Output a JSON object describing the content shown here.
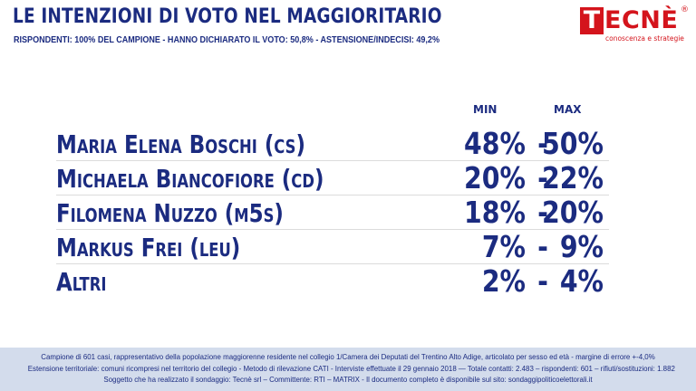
{
  "header": {
    "title": "LE INTENZIONI DI VOTO NEL MAGGIORITARIO",
    "subtitle": "RISPONDENTI: 100% DEL CAMPIONE - HANNO DICHIARATO IL VOTO: 50,8% - ASTENSIONE/INDECISI: 49,2%"
  },
  "logo": {
    "first_letter": "T",
    "rest": "ECNÈ",
    "registered": "®",
    "tagline": "conoscenza e strategie",
    "color": "#d4141c"
  },
  "chart_data": {
    "type": "table",
    "title": "LE INTENZIONI DI VOTO NEL MAGGIORITARIO",
    "columns": [
      "MIN",
      "MAX"
    ],
    "rows": [
      {
        "candidate": "Maria Elena Boschi (cs)",
        "min": "48%",
        "max": "50%"
      },
      {
        "candidate": "Michaela Biancofiore (cd)",
        "min": "20%",
        "max": "22%"
      },
      {
        "candidate": "Filomena Nuzzo (m5s)",
        "min": "18%",
        "max": "20%"
      },
      {
        "candidate": "Markus Frei (leu)",
        "min": "7%",
        "max": "9%"
      },
      {
        "candidate": "Altri",
        "min": "2%",
        "max": "4%"
      }
    ],
    "separator": "-"
  },
  "footer": {
    "line1": "Campione di  601 casi, rappresentativo della popolazione maggiorenne residente nel collegio 1/Camera dei Deputati del Trentino Alto Adige, articolato per sesso ed età - margine di errore +-4,0%",
    "line2": "Estensione territoriale: comuni ricompresi nel territorio del collegio - Metodo di rilevazione CATI - Interviste effettuate il 29 gennaio 2018 — Totale contatti: 2.483 – rispondenti: 601 – rifiuti/sostituzioni: 1.882",
    "line3": "Soggetto che ha realizzato il sondaggio: Tecnè srl  – Committente: RTI – MATRIX - Il documento completo è disponibile sul sito: sondaggipoliticoelettorali.it"
  },
  "colors": {
    "text": "#1b2b80",
    "footer_bg": "#d3dcec"
  }
}
